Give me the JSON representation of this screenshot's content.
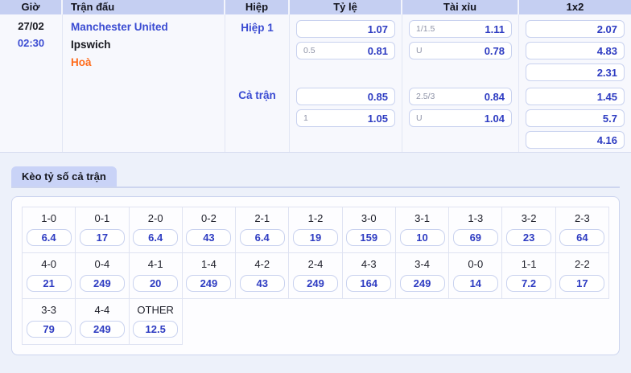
{
  "colors": {
    "accent_blue": "#3a4bd2",
    "odds_blue": "#2e3cc2",
    "draw_orange": "#ff6b1a",
    "header_bg": "#c5cff2",
    "tab_bg": "#c9d3f7",
    "page_bg": "#edf1fa"
  },
  "match_table": {
    "headers": {
      "time": "Giờ",
      "match": "Trận đấu",
      "half": "Hiệp",
      "handicap": "Tỷ lệ",
      "over_under": "Tài xỉu",
      "one_x_two_label": "1x2"
    },
    "row": {
      "date": "27/02",
      "time": "02:30",
      "home": "Manchester United",
      "away": "Ipswich",
      "draw_label": "Hoà",
      "sections": [
        {
          "label": "Hiệp 1",
          "handicap": [
            {
              "line": "",
              "odds": "1.07"
            },
            {
              "line": "0.5",
              "odds": "0.81"
            }
          ],
          "over_under": [
            {
              "line": "1/1.5",
              "odds": "1.11"
            },
            {
              "line": "U",
              "odds": "0.78"
            }
          ],
          "one_x_two": [
            "2.07",
            "4.83",
            "2.31"
          ]
        },
        {
          "label": "Cả trận",
          "handicap": [
            {
              "line": "",
              "odds": "0.85"
            },
            {
              "line": "1",
              "odds": "1.05"
            }
          ],
          "over_under": [
            {
              "line": "2.5/3",
              "odds": "0.84"
            },
            {
              "line": "U",
              "odds": "1.04"
            }
          ],
          "one_x_two": [
            "1.45",
            "5.7",
            "4.16"
          ]
        }
      ]
    }
  },
  "score_section": {
    "tab_label": "Kèo tỷ số cả trận",
    "scores": [
      {
        "label": "1-0",
        "odds": "6.4"
      },
      {
        "label": "0-1",
        "odds": "17"
      },
      {
        "label": "2-0",
        "odds": "6.4"
      },
      {
        "label": "0-2",
        "odds": "43"
      },
      {
        "label": "2-1",
        "odds": "6.4"
      },
      {
        "label": "1-2",
        "odds": "19"
      },
      {
        "label": "3-0",
        "odds": "159"
      },
      {
        "label": "3-1",
        "odds": "10"
      },
      {
        "label": "1-3",
        "odds": "69"
      },
      {
        "label": "3-2",
        "odds": "23"
      },
      {
        "label": "2-3",
        "odds": "64"
      },
      {
        "label": "4-0",
        "odds": "21"
      },
      {
        "label": "0-4",
        "odds": "249"
      },
      {
        "label": "4-1",
        "odds": "20"
      },
      {
        "label": "1-4",
        "odds": "249"
      },
      {
        "label": "4-2",
        "odds": "43"
      },
      {
        "label": "2-4",
        "odds": "249"
      },
      {
        "label": "4-3",
        "odds": "164"
      },
      {
        "label": "3-4",
        "odds": "249"
      },
      {
        "label": "0-0",
        "odds": "14"
      },
      {
        "label": "1-1",
        "odds": "7.2"
      },
      {
        "label": "2-2",
        "odds": "17"
      },
      {
        "label": "3-3",
        "odds": "79"
      },
      {
        "label": "4-4",
        "odds": "249"
      },
      {
        "label": "OTHER",
        "odds": "12.5"
      }
    ]
  }
}
